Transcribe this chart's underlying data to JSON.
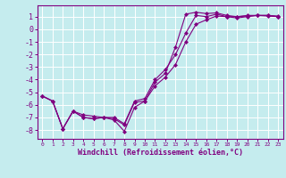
{
  "background_color": "#c5ecee",
  "grid_color": "#ffffff",
  "line_color": "#800080",
  "xlabel": "Windchill (Refroidissement éolien,°C)",
  "xlim": [
    -0.5,
    23.5
  ],
  "ylim": [
    -8.7,
    1.9
  ],
  "yticks": [
    1,
    0,
    -1,
    -2,
    -3,
    -4,
    -5,
    -6,
    -7,
    -8
  ],
  "xticks": [
    0,
    1,
    2,
    3,
    4,
    5,
    6,
    7,
    8,
    9,
    10,
    11,
    12,
    13,
    14,
    15,
    16,
    17,
    18,
    19,
    20,
    21,
    22,
    23
  ],
  "series1_x": [
    0,
    1,
    2,
    3,
    4,
    5,
    6,
    7,
    8,
    9,
    10,
    11,
    12,
    13,
    14,
    15,
    16,
    17,
    18,
    19,
    20,
    21,
    22,
    23
  ],
  "series1_y": [
    -5.3,
    -5.7,
    -7.9,
    -6.5,
    -7.0,
    -7.1,
    -7.0,
    -7.1,
    -7.6,
    -5.8,
    -5.7,
    -4.2,
    -3.5,
    -1.4,
    1.2,
    1.35,
    1.25,
    1.3,
    1.1,
    1.0,
    1.05,
    1.1,
    1.1,
    1.05
  ],
  "series2_x": [
    0,
    1,
    2,
    3,
    4,
    5,
    6,
    7,
    8,
    9,
    10,
    11,
    12,
    13,
    14,
    15,
    16,
    17,
    18,
    19,
    20,
    21,
    22,
    23
  ],
  "series2_y": [
    -5.3,
    -5.7,
    -7.9,
    -6.5,
    -6.8,
    -6.9,
    -7.0,
    -7.0,
    -7.5,
    -5.7,
    -5.5,
    -4.0,
    -3.2,
    -2.0,
    -0.3,
    1.1,
    1.0,
    1.2,
    1.0,
    1.0,
    1.1,
    1.1,
    1.1,
    1.0
  ],
  "series3_x": [
    0,
    1,
    2,
    3,
    4,
    5,
    6,
    7,
    8,
    9,
    10,
    11,
    12,
    13,
    14,
    15,
    16,
    17,
    18,
    19,
    20,
    21,
    22,
    23
  ],
  "series3_y": [
    -5.3,
    -5.7,
    -7.9,
    -6.5,
    -7.0,
    -7.1,
    -7.0,
    -7.2,
    -8.1,
    -6.2,
    -5.7,
    -4.5,
    -3.8,
    -2.8,
    -1.0,
    0.4,
    0.75,
    1.05,
    1.0,
    0.9,
    1.0,
    1.1,
    1.05,
    1.0
  ]
}
